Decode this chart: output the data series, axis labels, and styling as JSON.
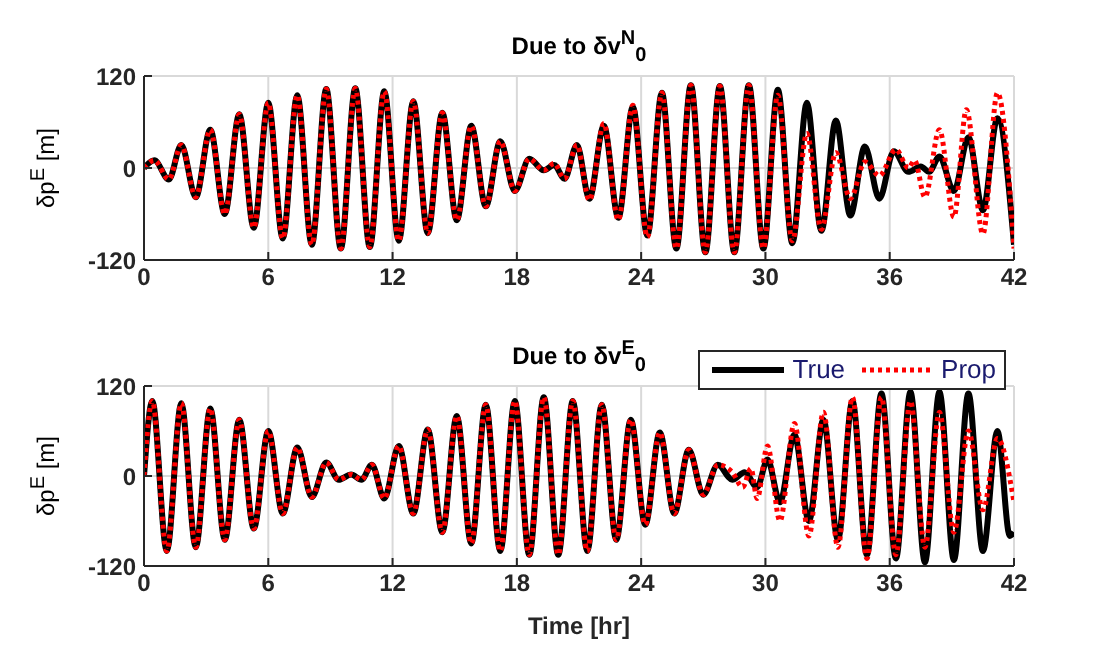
{
  "chart_data": [
    {
      "type": "line",
      "title": "Due to δv$^{N}$$_{0}$",
      "ylabel": "δp$^{E}$ [m]",
      "xlim": [
        0,
        42
      ],
      "xticks": [
        0,
        6,
        12,
        18,
        24,
        30,
        36,
        42
      ],
      "ylim": [
        -120,
        120
      ],
      "yticks": [
        -120,
        0,
        120
      ],
      "grid": true,
      "legend": false,
      "marker": "none",
      "series": [
        {
          "color": "#000000",
          "line_style": "solid",
          "x": [
            0,
            0.5,
            1.2,
            1.8,
            2.5,
            3.2,
            3.9,
            4.6,
            5.3,
            6.0,
            6.7,
            7.4,
            8.1,
            8.8,
            9.5,
            10.2,
            10.9,
            11.6,
            12.3,
            13.0,
            13.7,
            14.4,
            15.1,
            15.8,
            16.5,
            17.2,
            17.9,
            18.6,
            19.3,
            19.8,
            20.3,
            20.9,
            21.5,
            22.2,
            22.9,
            23.6,
            24.3,
            25.0,
            25.7,
            26.4,
            27.1,
            27.8,
            28.5,
            29.2,
            29.9,
            30.6,
            31.3,
            32.0,
            32.7,
            33.4,
            34.1,
            34.8,
            35.5,
            36.2,
            36.9,
            37.5,
            37.9,
            38.4,
            39.1,
            39.8,
            40.5,
            41.2,
            42
          ],
          "values": [
            0,
            10,
            -15,
            30,
            -38,
            50,
            -60,
            70,
            -78,
            85,
            -92,
            95,
            -100,
            103,
            -105,
            104,
            -103,
            100,
            -95,
            87,
            -85,
            72,
            -68,
            55,
            -50,
            35,
            -30,
            12,
            -3,
            4,
            -14,
            30,
            -40,
            55,
            -65,
            80,
            -88,
            98,
            -105,
            108,
            -110,
            107,
            -110,
            108,
            -105,
            102,
            -98,
            85,
            -82,
            62,
            -62,
            28,
            -40,
            22,
            -5,
            2,
            -5,
            15,
            -30,
            40,
            -55,
            65,
            -100
          ]
        },
        {
          "color": "#ff0000",
          "line_style": "dotted",
          "x": [
            0,
            0.5,
            1.2,
            1.8,
            2.5,
            3.2,
            3.9,
            4.6,
            5.3,
            6.0,
            6.7,
            7.4,
            8.1,
            8.8,
            9.5,
            10.2,
            10.9,
            11.6,
            12.3,
            13.0,
            13.7,
            14.4,
            15.1,
            15.8,
            16.5,
            17.2,
            17.9,
            18.6,
            19.3,
            19.8,
            20.3,
            20.9,
            21.5,
            22.2,
            22.9,
            23.6,
            24.3,
            25.0,
            25.7,
            26.4,
            27.1,
            27.8,
            28.5,
            29.2,
            29.9,
            30.6,
            31.3,
            32.0,
            32.7,
            33.4,
            34.1,
            34.8,
            35.5,
            36.3,
            36.9,
            37.2,
            37.7,
            38.4,
            39.1,
            39.7,
            40.5,
            41.2,
            42
          ],
          "values": [
            0,
            10,
            -15,
            30,
            -38,
            50,
            -60,
            70,
            -78,
            85,
            -92,
            95,
            -100,
            103,
            -105,
            104,
            -103,
            100,
            -95,
            87,
            -85,
            72,
            -68,
            55,
            -50,
            35,
            -30,
            12,
            -3,
            6,
            -14,
            30,
            -42,
            58,
            -68,
            82,
            -90,
            98,
            -105,
            108,
            -110,
            107,
            -110,
            108,
            -105,
            95,
            -95,
            45,
            -80,
            20,
            -40,
            8,
            -10,
            24,
            0,
            10,
            -38,
            50,
            -64,
            76,
            -86,
            98,
            -105
          ]
        }
      ]
    },
    {
      "type": "line",
      "title": "Due to δv$^{E}$$_{0}$",
      "xlabel": "Time [hr]",
      "ylabel": "δp$^{E}$ [m]",
      "xlim": [
        0,
        42
      ],
      "xticks": [
        0,
        6,
        12,
        18,
        24,
        30,
        36,
        42
      ],
      "ylim": [
        -120,
        120
      ],
      "yticks": [
        -120,
        0,
        120
      ],
      "grid": true,
      "legend": "top right",
      "marker": "none",
      "series": [
        {
          "name": "True",
          "color": "#000000",
          "line_style": "solid",
          "x": [
            0,
            0.4,
            1.1,
            1.8,
            2.5,
            3.2,
            3.9,
            4.6,
            5.3,
            6.0,
            6.7,
            7.4,
            8.1,
            8.8,
            9.4,
            10.0,
            10.5,
            11.0,
            11.6,
            12.3,
            13.0,
            13.7,
            14.4,
            15.1,
            15.8,
            16.5,
            17.2,
            17.9,
            18.6,
            19.3,
            20.0,
            20.7,
            21.4,
            22.1,
            22.8,
            23.5,
            24.2,
            24.9,
            25.6,
            26.3,
            27.0,
            27.7,
            28.4,
            29.0,
            29.6,
            30.1,
            30.7,
            31.4,
            32.1,
            32.8,
            33.5,
            34.2,
            34.9,
            35.6,
            36.3,
            37.0,
            37.7,
            38.4,
            39.1,
            39.8,
            40.5,
            41.2,
            41.8,
            42
          ],
          "values": [
            0,
            100,
            -100,
            97,
            -95,
            90,
            -85,
            75,
            -70,
            60,
            -50,
            38,
            -28,
            18,
            -5,
            2,
            -5,
            15,
            -30,
            40,
            -50,
            62,
            -75,
            80,
            -90,
            95,
            -100,
            100,
            -105,
            105,
            -105,
            100,
            -100,
            95,
            -85,
            75,
            -65,
            58,
            -50,
            35,
            -25,
            15,
            -5,
            5,
            -15,
            22,
            -35,
            55,
            -60,
            75,
            -85,
            100,
            -105,
            110,
            -110,
            112,
            -115,
            112,
            -112,
            110,
            -100,
            60,
            -80,
            -75
          ]
        },
        {
          "name": "Prop",
          "color": "#ff0000",
          "line_style": "dotted",
          "x": [
            0,
            0.4,
            1.1,
            1.8,
            2.5,
            3.2,
            3.9,
            4.6,
            5.3,
            6.0,
            6.7,
            7.4,
            8.1,
            8.8,
            9.4,
            10.0,
            10.5,
            11.0,
            11.6,
            12.3,
            13.0,
            13.7,
            14.4,
            15.1,
            15.8,
            16.5,
            17.2,
            17.9,
            18.6,
            19.3,
            20.0,
            20.7,
            21.4,
            22.1,
            22.8,
            23.5,
            24.2,
            24.9,
            25.6,
            26.3,
            27.0,
            27.7,
            28.4,
            28.9,
            29.3,
            29.6,
            30.1,
            30.7,
            31.4,
            32.1,
            32.8,
            33.5,
            34.2,
            34.9,
            35.6,
            36.3,
            37.0,
            37.7,
            38.4,
            39.1,
            39.8,
            40.5,
            41.2,
            42
          ],
          "values": [
            0,
            100,
            -100,
            97,
            -95,
            90,
            -85,
            75,
            -70,
            60,
            -50,
            38,
            -28,
            18,
            -5,
            2,
            -5,
            15,
            -30,
            40,
            -50,
            62,
            -75,
            80,
            -90,
            95,
            -100,
            100,
            -105,
            105,
            -105,
            100,
            -100,
            95,
            -85,
            75,
            -65,
            58,
            -50,
            35,
            -25,
            15,
            5,
            -15,
            10,
            -30,
            40,
            -60,
            70,
            -80,
            85,
            -95,
            105,
            -110,
            105,
            -105,
            100,
            -95,
            85,
            -75,
            60,
            -45,
            50,
            -35
          ]
        }
      ]
    }
  ]
}
